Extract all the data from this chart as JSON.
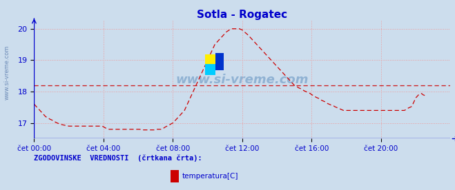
{
  "title": "Sotla - Rogatec",
  "title_color": "#0000cc",
  "bg_color": "#ccdded",
  "plot_bg_color": "#ccdded",
  "grid_color": "#ee9999",
  "axis_color": "#0000cc",
  "line_color": "#cc0000",
  "ref_line_color": "#cc0000",
  "ref_line_value": 18.2,
  "ylim": [
    16.5,
    20.25
  ],
  "yticks": [
    17,
    18,
    19,
    20
  ],
  "xtick_labels": [
    "čet 00:00",
    "čet 04:00",
    "čet 08:00",
    "čet 12:00",
    "čet 16:00",
    "čet 20:00"
  ],
  "xtick_positions": [
    0,
    48,
    96,
    144,
    192,
    240
  ],
  "total_points": 288,
  "legend_text": "ZGODOVINSKE  VREDNOSTI  (črtkana črta):",
  "legend_label": "temperatura[C]",
  "watermark": "www.si-vreme.com",
  "sidebar_text": "www.si-vreme.com",
  "temperature_data": [
    17.6,
    17.55,
    17.5,
    17.45,
    17.4,
    17.35,
    17.3,
    17.25,
    17.2,
    17.18,
    17.15,
    17.12,
    17.1,
    17.08,
    17.05,
    17.02,
    17.0,
    16.98,
    16.96,
    16.95,
    16.94,
    16.93,
    16.92,
    16.91,
    16.9,
    16.9,
    16.9,
    16.9,
    16.9,
    16.9,
    16.9,
    16.9,
    16.9,
    16.9,
    16.9,
    16.9,
    16.9,
    16.9,
    16.9,
    16.9,
    16.9,
    16.9,
    16.9,
    16.9,
    16.9,
    16.9,
    16.9,
    16.9,
    16.88,
    16.85,
    16.83,
    16.81,
    16.8,
    16.8,
    16.8,
    16.8,
    16.8,
    16.8,
    16.8,
    16.8,
    16.8,
    16.8,
    16.8,
    16.8,
    16.8,
    16.8,
    16.8,
    16.8,
    16.8,
    16.8,
    16.8,
    16.8,
    16.8,
    16.8,
    16.79,
    16.78,
    16.78,
    16.78,
    16.78,
    16.78,
    16.78,
    16.78,
    16.78,
    16.78,
    16.79,
    16.8,
    16.8,
    16.8,
    16.8,
    16.82,
    16.85,
    16.88,
    16.9,
    16.92,
    16.95,
    16.98,
    17.0,
    17.05,
    17.1,
    17.15,
    17.2,
    17.25,
    17.3,
    17.35,
    17.4,
    17.5,
    17.6,
    17.7,
    17.8,
    17.9,
    18.0,
    18.1,
    18.2,
    18.3,
    18.4,
    18.5,
    18.6,
    18.7,
    18.8,
    18.9,
    19.0,
    19.1,
    19.2,
    19.3,
    19.4,
    19.5,
    19.55,
    19.6,
    19.65,
    19.7,
    19.75,
    19.8,
    19.85,
    19.9,
    19.93,
    19.96,
    19.98,
    20.0,
    20.0,
    20.0,
    20.0,
    20.0,
    20.0,
    19.98,
    19.96,
    19.92,
    19.88,
    19.84,
    19.8,
    19.75,
    19.7,
    19.65,
    19.6,
    19.55,
    19.5,
    19.45,
    19.4,
    19.35,
    19.3,
    19.25,
    19.2,
    19.15,
    19.1,
    19.05,
    19.0,
    18.95,
    18.9,
    18.85,
    18.8,
    18.75,
    18.7,
    18.65,
    18.6,
    18.55,
    18.5,
    18.45,
    18.4,
    18.35,
    18.3,
    18.25,
    18.2,
    18.18,
    18.15,
    18.12,
    18.1,
    18.08,
    18.05,
    18.02,
    18.0,
    17.98,
    17.96,
    17.94,
    17.9,
    17.88,
    17.85,
    17.82,
    17.8,
    17.78,
    17.75,
    17.72,
    17.7,
    17.68,
    17.65,
    17.62,
    17.6,
    17.58,
    17.56,
    17.55,
    17.52,
    17.5,
    17.48,
    17.46,
    17.44,
    17.42,
    17.4,
    17.4,
    17.4,
    17.4,
    17.4,
    17.4,
    17.4,
    17.4,
    17.4,
    17.4,
    17.4,
    17.4,
    17.4,
    17.4,
    17.4,
    17.4,
    17.4,
    17.4,
    17.4,
    17.4,
    17.4,
    17.4,
    17.4,
    17.4,
    17.4,
    17.4,
    17.4,
    17.4,
    17.4,
    17.4,
    17.4,
    17.4,
    17.4,
    17.4,
    17.4,
    17.4,
    17.4,
    17.4,
    17.4,
    17.4,
    17.4,
    17.4,
    17.4,
    17.42,
    17.45,
    17.48,
    17.5,
    17.52,
    17.6,
    17.7,
    17.8,
    17.85,
    17.9,
    17.92,
    17.94,
    17.9,
    17.88,
    17.85
  ]
}
